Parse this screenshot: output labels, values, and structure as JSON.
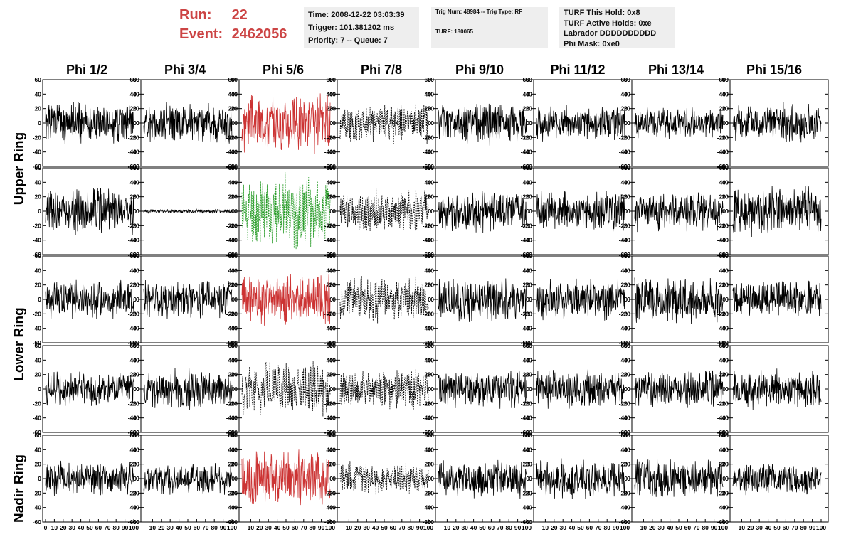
{
  "header": {
    "run_label": "Run:",
    "run_value": "22",
    "event_label": "Event:",
    "event_value": "2462056",
    "time": "Time: 2008-12-22 03:03:39",
    "trigger": "Trigger: 101.381202 ms",
    "priority": "Priority: 7 -- Queue: 7",
    "trig_num": "Trig Num: 48984 -- Trig Type: RF",
    "turf": "TURF: 180065",
    "turf_hold": "TURF This Hold: 0x8",
    "turf_active": "TURF Active Holds: 0xe",
    "labrador": "Labrador DDDDDDDDDD",
    "phi_mask": "Phi Mask: 0xe0"
  },
  "colors": {
    "normal": "#000000",
    "red": "#cc3333",
    "green": "#229922",
    "header_red": "#cc4444"
  },
  "chart_data": {
    "type": "line",
    "columns": [
      "Phi 1/2",
      "Phi 3/4",
      "Phi 5/6",
      "Phi 7/8",
      "Phi 9/10",
      "Phi 11/12",
      "Phi 13/14",
      "Phi 15/16"
    ],
    "ring_labels": [
      "Upper Ring",
      "Lower Ring",
      "Nadir Ring"
    ],
    "rows": 5,
    "ylim": [
      -60,
      60
    ],
    "yticks": [
      -60,
      -40,
      -20,
      0,
      20,
      40,
      60
    ],
    "xlim": [
      0,
      100
    ],
    "xtick_labels": [
      "0",
      "10",
      "20",
      "30",
      "40",
      "50",
      "60",
      "70",
      "80",
      "90",
      "100"
    ],
    "panels": [
      [
        {
          "style": "solid",
          "color": "normal",
          "amp": 32,
          "seed": 1
        },
        {
          "style": "solid",
          "color": "normal",
          "amp": 30,
          "seed": 2
        },
        {
          "style": "solid",
          "color": "red",
          "amp": 45,
          "seed": 3
        },
        {
          "style": "dashed",
          "color": "normal",
          "amp": 30,
          "seed": 4
        },
        {
          "style": "solid",
          "color": "normal",
          "amp": 32,
          "seed": 5
        },
        {
          "style": "solid",
          "color": "normal",
          "amp": 26,
          "seed": 6
        },
        {
          "style": "solid",
          "color": "normal",
          "amp": 24,
          "seed": 7
        },
        {
          "style": "solid",
          "color": "normal",
          "amp": 30,
          "seed": 8
        }
      ],
      [
        {
          "style": "solid",
          "color": "normal",
          "amp": 35,
          "seed": 9
        },
        {
          "style": "solid",
          "color": "normal",
          "amp": 3,
          "seed": 10
        },
        {
          "style": "dashed",
          "color": "green",
          "amp": 55,
          "seed": 11
        },
        {
          "style": "dashed",
          "color": "normal",
          "amp": 33,
          "seed": 12
        },
        {
          "style": "solid",
          "color": "normal",
          "amp": 30,
          "seed": 13
        },
        {
          "style": "solid",
          "color": "normal",
          "amp": 30,
          "seed": 14
        },
        {
          "style": "solid",
          "color": "normal",
          "amp": 30,
          "seed": 15
        },
        {
          "style": "solid",
          "color": "normal",
          "amp": 38,
          "seed": 16
        }
      ],
      [
        {
          "style": "solid",
          "color": "normal",
          "amp": 30,
          "seed": 17
        },
        {
          "style": "solid",
          "color": "normal",
          "amp": 30,
          "seed": 18
        },
        {
          "style": "solid",
          "color": "red",
          "amp": 40,
          "seed": 19
        },
        {
          "style": "dashed",
          "color": "normal",
          "amp": 35,
          "seed": 20
        },
        {
          "style": "solid",
          "color": "normal",
          "amp": 35,
          "seed": 21
        },
        {
          "style": "solid",
          "color": "normal",
          "amp": 32,
          "seed": 22
        },
        {
          "style": "solid",
          "color": "normal",
          "amp": 38,
          "seed": 23
        },
        {
          "style": "solid",
          "color": "normal",
          "amp": 28,
          "seed": 24
        }
      ],
      [
        {
          "style": "solid",
          "color": "normal",
          "amp": 26,
          "seed": 25
        },
        {
          "style": "solid",
          "color": "normal",
          "amp": 30,
          "seed": 26
        },
        {
          "style": "dashed",
          "color": "normal",
          "amp": 40,
          "seed": 27
        },
        {
          "style": "dashed",
          "color": "normal",
          "amp": 30,
          "seed": 28
        },
        {
          "style": "solid",
          "color": "normal",
          "amp": 28,
          "seed": 29
        },
        {
          "style": "solid",
          "color": "normal",
          "amp": 30,
          "seed": 30
        },
        {
          "style": "solid",
          "color": "normal",
          "amp": 28,
          "seed": 31
        },
        {
          "style": "solid",
          "color": "normal",
          "amp": 30,
          "seed": 32
        }
      ],
      [
        {
          "style": "solid",
          "color": "normal",
          "amp": 26,
          "seed": 33
        },
        {
          "style": "solid",
          "color": "normal",
          "amp": 24,
          "seed": 34
        },
        {
          "style": "solid",
          "color": "red",
          "amp": 45,
          "seed": 35
        },
        {
          "style": "dashed",
          "color": "normal",
          "amp": 25,
          "seed": 36
        },
        {
          "style": "solid",
          "color": "normal",
          "amp": 30,
          "seed": 37
        },
        {
          "style": "solid",
          "color": "normal",
          "amp": 30,
          "seed": 38
        },
        {
          "style": "solid",
          "color": "normal",
          "amp": 30,
          "seed": 39
        },
        {
          "style": "solid",
          "color": "normal",
          "amp": 24,
          "seed": 40
        }
      ]
    ]
  }
}
